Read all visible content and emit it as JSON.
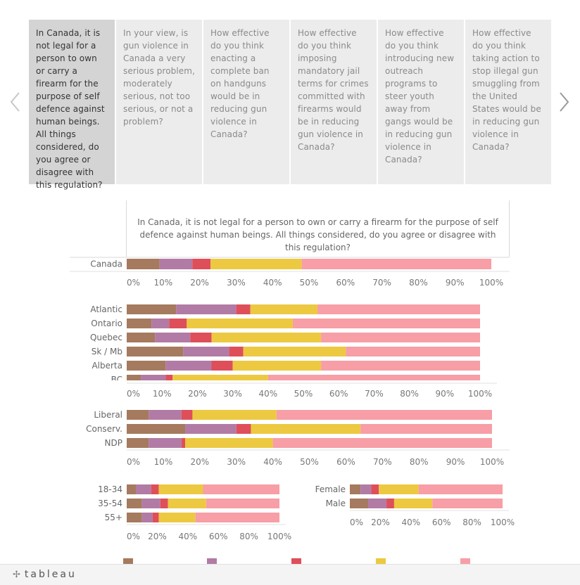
{
  "tabs": [
    "In Canada, it is not legal for a person to own or carry a firearm for the purpose of self defence against human beings. All things considered, do you agree or disagree with this regulation?",
    "In your view, is gun violence in Canada a very serious problem, moderately serious, not too serious, or not a problem?",
    "How effective do you think enacting a complete ban on handguns would be in reducing gun violence in Canada?",
    "How effective do you think imposing mandatory jail terms for crimes committed with firearms would be in reducing gun violence in Canada?",
    "How effective do you think introducing new outreach programs to steer youth away from gangs would be in reducing gun violence in Canada?",
    "How effective do you think taking action to stop illegal gun smuggling from the United States would be in reducing gun violence in Canada?"
  ],
  "question_title": "In Canada, it is not legal for a person to own or carry a firearm for the purpose of self defence against human beings. All things considered, do you agree or disagree with this regulation?",
  "footer": {
    "brand": "tableau"
  },
  "colors": [
    "#a57a5e",
    "#b27ba5",
    "#de4f5a",
    "#ecc941",
    "#f79ea6"
  ],
  "chart_data": [
    {
      "type": "bar",
      "orientation": "horizontal",
      "stacked": true,
      "categories": [
        "Canada"
      ],
      "ticks": [
        "0%",
        "10%",
        "20%",
        "30%",
        "40%",
        "50%",
        "60%",
        "70%",
        "80%",
        "90%",
        "100%"
      ],
      "xlim": [
        0,
        100
      ],
      "values": [
        [
          9,
          9,
          5,
          25,
          52
        ]
      ]
    },
    {
      "type": "bar",
      "orientation": "horizontal",
      "stacked": true,
      "categories": [
        "Atlantic",
        "Ontario",
        "Quebec",
        "Sk / Mb",
        "Alberta",
        "BC"
      ],
      "ticks": [
        "0%",
        "10%",
        "20%",
        "30%",
        "40%",
        "50%",
        "60%",
        "70%",
        "80%",
        "90%",
        "100%"
      ],
      "xlim": [
        0,
        100
      ],
      "values": [
        [
          14,
          17,
          4,
          19,
          46
        ],
        [
          7,
          5,
          5,
          30,
          53
        ],
        [
          8,
          10,
          6,
          31,
          45
        ],
        [
          16,
          13,
          4,
          29,
          38
        ],
        [
          11,
          13,
          6,
          25,
          45
        ],
        [
          4,
          7,
          2,
          27,
          60
        ]
      ]
    },
    {
      "type": "bar",
      "orientation": "horizontal",
      "stacked": true,
      "categories": [
        "Liberal",
        "Conserv.",
        "NDP"
      ],
      "ticks": [
        "0%",
        "10%",
        "20%",
        "30%",
        "40%",
        "50%",
        "60%",
        "70%",
        "80%",
        "90%",
        "100%"
      ],
      "xlim": [
        0,
        100
      ],
      "values": [
        [
          6,
          9,
          3,
          23,
          59
        ],
        [
          16,
          14,
          4,
          30,
          36
        ],
        [
          6,
          9,
          1,
          24,
          60
        ]
      ]
    },
    {
      "type": "bar",
      "orientation": "horizontal",
      "stacked": true,
      "categories": [
        "18-34",
        "35-54",
        "55+"
      ],
      "ticks": [
        "0%",
        "20%",
        "40%",
        "60%",
        "80%",
        "100%"
      ],
      "xlim": [
        0,
        100
      ],
      "values": [
        [
          6,
          10,
          5,
          29,
          50
        ],
        [
          10,
          12,
          5,
          25,
          48
        ],
        [
          10,
          7,
          4,
          24,
          55
        ]
      ]
    },
    {
      "type": "bar",
      "orientation": "horizontal",
      "stacked": true,
      "categories": [
        "Female",
        "Male"
      ],
      "ticks": [
        "0%",
        "20%",
        "40%",
        "60%",
        "80%",
        "100%"
      ],
      "xlim": [
        0,
        100
      ],
      "values": [
        [
          7,
          7,
          5,
          26,
          55
        ],
        [
          12,
          12,
          5,
          25,
          46
        ]
      ]
    }
  ]
}
